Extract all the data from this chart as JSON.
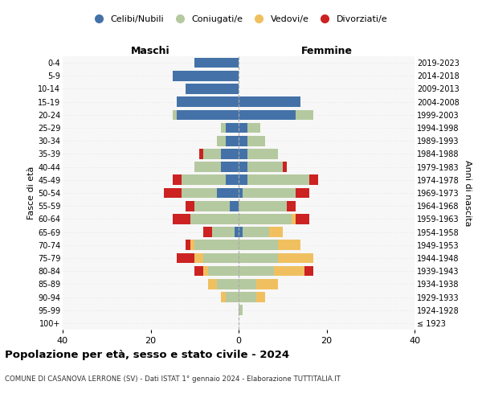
{
  "age_groups": [
    "100+",
    "95-99",
    "90-94",
    "85-89",
    "80-84",
    "75-79",
    "70-74",
    "65-69",
    "60-64",
    "55-59",
    "50-54",
    "45-49",
    "40-44",
    "35-39",
    "30-34",
    "25-29",
    "20-24",
    "15-19",
    "10-14",
    "5-9",
    "0-4"
  ],
  "birth_years": [
    "≤ 1923",
    "1924-1928",
    "1929-1933",
    "1934-1938",
    "1939-1943",
    "1944-1948",
    "1949-1953",
    "1954-1958",
    "1959-1963",
    "1964-1968",
    "1969-1973",
    "1974-1978",
    "1979-1983",
    "1984-1988",
    "1989-1993",
    "1994-1998",
    "1999-2003",
    "2004-2008",
    "2009-2013",
    "2014-2018",
    "2019-2023"
  ],
  "colors": {
    "celibi": "#4472a8",
    "coniugati": "#b5c9a0",
    "vedovi": "#f0c060",
    "divorziati": "#cc2222"
  },
  "males": {
    "celibi": [
      0,
      0,
      0,
      0,
      0,
      0,
      0,
      1,
      0,
      2,
      5,
      3,
      4,
      4,
      3,
      3,
      14,
      14,
      12,
      15,
      10
    ],
    "coniugati": [
      0,
      0,
      3,
      5,
      7,
      8,
      10,
      5,
      11,
      8,
      8,
      10,
      6,
      4,
      2,
      1,
      1,
      0,
      0,
      0,
      0
    ],
    "vedovi": [
      0,
      0,
      1,
      2,
      1,
      2,
      1,
      0,
      0,
      0,
      0,
      0,
      0,
      0,
      0,
      0,
      0,
      0,
      0,
      0,
      0
    ],
    "divorziati": [
      0,
      0,
      0,
      0,
      2,
      4,
      1,
      2,
      4,
      2,
      4,
      2,
      0,
      1,
      0,
      0,
      0,
      0,
      0,
      0,
      0
    ]
  },
  "females": {
    "nubili": [
      0,
      0,
      0,
      0,
      0,
      0,
      0,
      1,
      0,
      0,
      1,
      2,
      2,
      2,
      2,
      2,
      13,
      14,
      0,
      0,
      0
    ],
    "coniugate": [
      0,
      1,
      4,
      4,
      8,
      9,
      9,
      6,
      12,
      11,
      12,
      14,
      8,
      7,
      4,
      3,
      4,
      0,
      0,
      0,
      0
    ],
    "vedove": [
      0,
      0,
      2,
      5,
      7,
      8,
      5,
      3,
      1,
      0,
      0,
      0,
      0,
      0,
      0,
      0,
      0,
      0,
      0,
      0,
      0
    ],
    "divorziate": [
      0,
      0,
      0,
      0,
      2,
      0,
      0,
      0,
      3,
      2,
      3,
      2,
      1,
      0,
      0,
      0,
      0,
      0,
      0,
      0,
      0
    ]
  },
  "xlim": 40,
  "title": "Popolazione per età, sesso e stato civile - 2024",
  "subtitle": "COMUNE DI CASANOVA LERRONE (SV) - Dati ISTAT 1° gennaio 2024 - Elaborazione TUTTITALIA.IT",
  "ylabel": "Fasce di età",
  "ylabel_right": "Anni di nascita",
  "xlabel_left": "Maschi",
  "xlabel_right": "Femmine",
  "bg_color": "#f7f7f7"
}
